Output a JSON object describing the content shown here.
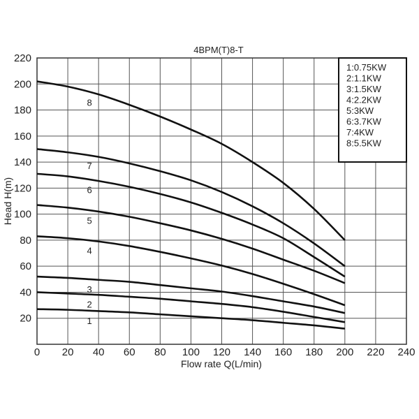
{
  "chart_data": {
    "type": "line",
    "title": "4BPM(T)8-T",
    "xlabel": "Flow rate Q(L/min)",
    "ylabel": "Head H(m)",
    "xlim": [
      0,
      240
    ],
    "ylim": [
      0,
      220
    ],
    "x_ticks": [
      0,
      20,
      40,
      60,
      80,
      100,
      120,
      140,
      160,
      180,
      200,
      220,
      240
    ],
    "y_ticks": [
      20,
      40,
      60,
      80,
      100,
      120,
      140,
      160,
      180,
      200,
      220
    ],
    "grid": true,
    "legend_position": "top-right",
    "x": [
      0,
      20,
      40,
      60,
      80,
      100,
      120,
      140,
      160,
      180,
      200
    ],
    "series": [
      {
        "name": "1:0.75KW",
        "label": "1",
        "values": [
          27,
          26.5,
          25.5,
          24.5,
          23,
          21.5,
          20,
          18.5,
          16.5,
          14.5,
          12
        ]
      },
      {
        "name": "2:1.1KW",
        "label": "2",
        "values": [
          40,
          39,
          38,
          36.5,
          35,
          33,
          31,
          28.5,
          25,
          21,
          17
        ]
      },
      {
        "name": "3:1.5KW",
        "label": "3",
        "values": [
          52,
          51,
          49.5,
          48,
          45.5,
          43,
          40.5,
          37,
          33,
          29,
          24
        ]
      },
      {
        "name": "4:2.2KW",
        "label": "4",
        "values": [
          83,
          81.5,
          79,
          75.5,
          71,
          66,
          60.5,
          54,
          46.5,
          38.5,
          30
        ]
      },
      {
        "name": "5:3KW",
        "label": "5",
        "values": [
          107,
          105,
          102,
          98,
          93,
          87.5,
          81,
          73.5,
          65,
          56.5,
          47
        ]
      },
      {
        "name": "6:3.7KW",
        "label": "6",
        "values": [
          131,
          129,
          125.5,
          121,
          115.5,
          109,
          101,
          92,
          81.5,
          67,
          52
        ]
      },
      {
        "name": "7:4KW",
        "label": "7",
        "values": [
          150,
          147.5,
          144,
          139,
          133,
          126,
          117,
          106,
          93,
          77.5,
          60
        ]
      },
      {
        "name": "8:5.5KW",
        "label": "8",
        "values": [
          202,
          198,
          192,
          184,
          175,
          165,
          154,
          140,
          124,
          104,
          80
        ]
      }
    ]
  },
  "legend": {
    "items": [
      "1:0.75KW",
      "2:1.1KW",
      "3:1.5KW",
      "4:2.2KW",
      "5:3KW",
      "6:3.7KW",
      "7:4KW",
      "8:5.5KW"
    ]
  },
  "colors": {
    "curve": "#111111",
    "grid": "#555555",
    "background": "#ffffff"
  }
}
